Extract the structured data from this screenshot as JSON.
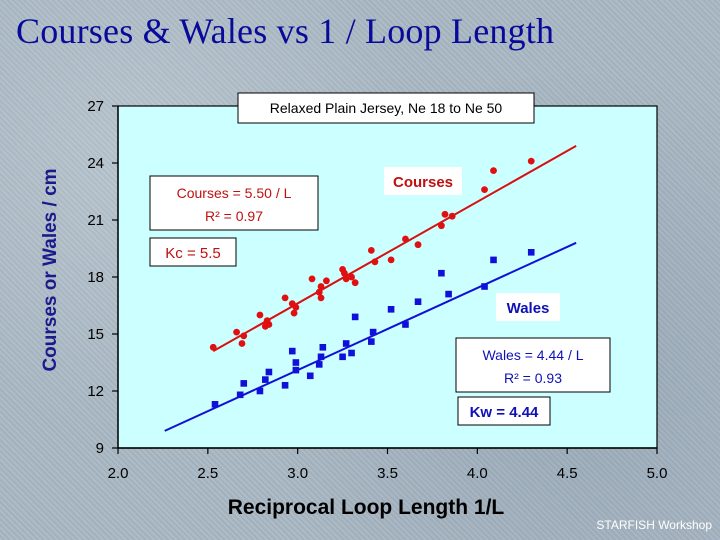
{
  "title": "Courses & Wales vs 1 / Loop Length",
  "footer": "STARFISH Workshop",
  "chart_data": {
    "type": "scatter",
    "title": "Relaxed Plain Jersey, Ne 18 to Ne 50",
    "xlabel": "Reciprocal Loop Length  1/L",
    "ylabel": "Courses or Wales / cm",
    "xlim": [
      2.0,
      5.0
    ],
    "ylim": [
      9,
      27
    ],
    "x_ticks": [
      "2.0",
      "2.5",
      "3.0",
      "3.5",
      "4.0",
      "4.5",
      "5.0"
    ],
    "y_ticks": [
      "9",
      "12",
      "15",
      "18",
      "21",
      "24",
      "27"
    ],
    "series": [
      {
        "name": "Courses",
        "color": "#e01010",
        "marker": "circle",
        "points": [
          [
            2.53,
            14.3
          ],
          [
            2.66,
            15.1
          ],
          [
            2.69,
            14.5
          ],
          [
            2.7,
            14.9
          ],
          [
            2.79,
            16.0
          ],
          [
            2.82,
            15.4
          ],
          [
            2.83,
            15.7
          ],
          [
            2.84,
            15.5
          ],
          [
            2.93,
            16.9
          ],
          [
            2.97,
            16.6
          ],
          [
            2.98,
            16.1
          ],
          [
            2.99,
            16.4
          ],
          [
            3.08,
            17.9
          ],
          [
            3.12,
            17.2
          ],
          [
            3.13,
            17.5
          ],
          [
            3.13,
            16.9
          ],
          [
            3.16,
            17.8
          ],
          [
            3.25,
            18.4
          ],
          [
            3.26,
            18.2
          ],
          [
            3.27,
            17.9
          ],
          [
            3.3,
            18.0
          ],
          [
            3.32,
            17.7
          ],
          [
            3.41,
            19.4
          ],
          [
            3.43,
            18.8
          ],
          [
            3.52,
            18.9
          ],
          [
            3.6,
            20.0
          ],
          [
            3.67,
            19.7
          ],
          [
            3.8,
            20.7
          ],
          [
            3.82,
            21.3
          ],
          [
            3.86,
            21.2
          ],
          [
            4.04,
            22.6
          ],
          [
            4.09,
            23.6
          ],
          [
            4.3,
            24.1
          ]
        ]
      },
      {
        "name": "Wales",
        "color": "#1010d8",
        "marker": "square",
        "points": [
          [
            2.54,
            11.3
          ],
          [
            2.68,
            11.8
          ],
          [
            2.7,
            12.4
          ],
          [
            2.79,
            12.0
          ],
          [
            2.82,
            12.6
          ],
          [
            2.84,
            13.0
          ],
          [
            2.93,
            12.3
          ],
          [
            2.97,
            14.1
          ],
          [
            2.99,
            13.5
          ],
          [
            2.99,
            13.1
          ],
          [
            3.07,
            12.8
          ],
          [
            3.12,
            13.4
          ],
          [
            3.13,
            13.8
          ],
          [
            3.14,
            14.3
          ],
          [
            3.25,
            13.8
          ],
          [
            3.27,
            14.5
          ],
          [
            3.3,
            14.0
          ],
          [
            3.32,
            15.9
          ],
          [
            3.42,
            15.1
          ],
          [
            3.41,
            14.6
          ],
          [
            3.52,
            16.3
          ],
          [
            3.6,
            15.5
          ],
          [
            3.67,
            16.7
          ],
          [
            3.8,
            18.2
          ],
          [
            3.84,
            17.1
          ],
          [
            4.04,
            17.5
          ],
          [
            4.09,
            18.9
          ],
          [
            4.3,
            19.3
          ]
        ]
      }
    ],
    "fit_lines": [
      {
        "name": "Courses fit",
        "color": "#d81010",
        "from": [
          2.53,
          14.1
        ],
        "to": [
          4.55,
          24.9
        ]
      },
      {
        "name": "Wales fit",
        "color": "#1010d8",
        "from": [
          2.26,
          9.9
        ],
        "to": [
          4.55,
          19.8
        ]
      }
    ],
    "annotations": {
      "courses_label": "Courses",
      "wales_label": "Wales",
      "courses_equation": "Courses  =  5.50 / L",
      "courses_r2": "R² = 0.97",
      "wales_equation": "Wales = 4.44 / L",
      "wales_r2": "R² = 0.93",
      "kc": "Kc = 5.5",
      "kw": "Kw = 4.44"
    }
  }
}
